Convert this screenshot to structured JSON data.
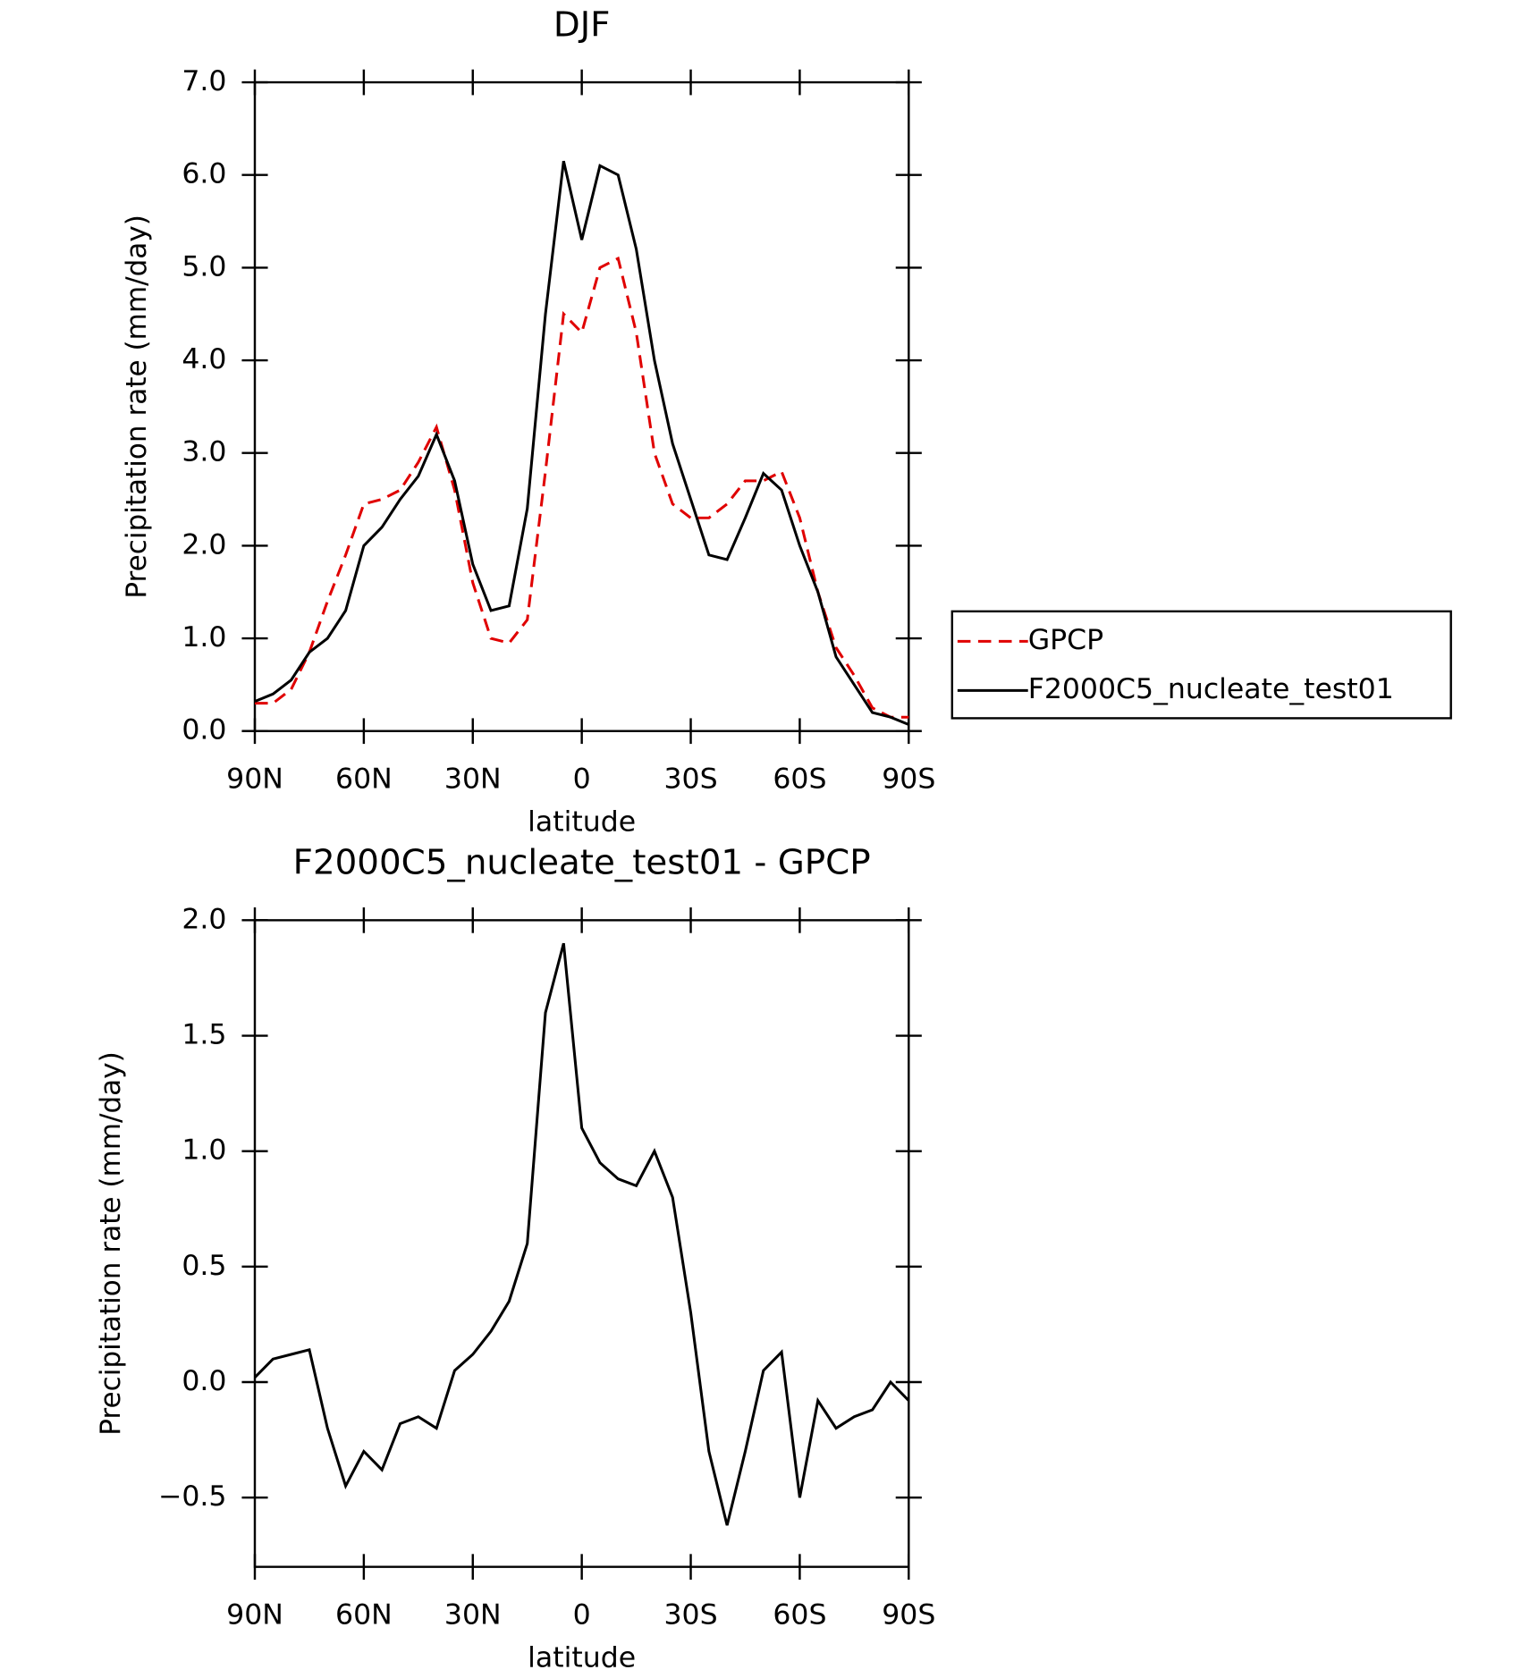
{
  "chart_data": [
    {
      "type": "line",
      "title": "DJF",
      "xlabel": "latitude",
      "ylabel": "Precipitation rate (mm/day)",
      "x": [
        90,
        85,
        80,
        75,
        70,
        65,
        60,
        55,
        50,
        45,
        40,
        35,
        30,
        25,
        20,
        15,
        10,
        5,
        0,
        -5,
        -10,
        -15,
        -20,
        -25,
        -30,
        -35,
        -40,
        -45,
        -50,
        -55,
        -60,
        -65,
        -70,
        -75,
        -80,
        -85,
        -90
      ],
      "series": [
        {
          "name": "GPCP",
          "color": "#e00000",
          "linestyle": "dashed",
          "values": [
            0.3,
            0.3,
            0.45,
            0.85,
            1.4,
            1.9,
            2.45,
            2.5,
            2.6,
            2.9,
            3.28,
            2.6,
            1.6,
            1.0,
            0.95,
            1.2,
            2.8,
            4.5,
            4.3,
            5.0,
            5.1,
            4.3,
            3.0,
            2.45,
            2.3,
            2.3,
            2.45,
            2.7,
            2.7,
            2.8,
            2.3,
            1.5,
            0.9,
            0.6,
            0.25,
            0.15,
            0.15
          ]
        },
        {
          "name": "F2000C5_nucleate_test01",
          "color": "#000000",
          "linestyle": "solid",
          "values": [
            0.32,
            0.4,
            0.55,
            0.85,
            1.0,
            1.3,
            2.0,
            2.2,
            2.5,
            2.75,
            3.2,
            2.7,
            1.8,
            1.3,
            1.35,
            2.4,
            4.5,
            6.15,
            5.3,
            6.1,
            6.0,
            5.2,
            4.0,
            3.1,
            2.5,
            1.9,
            1.85,
            2.3,
            2.78,
            2.6,
            2.0,
            1.5,
            0.8,
            0.5,
            0.2,
            0.15,
            0.07
          ]
        }
      ],
      "xlim": [
        90,
        -90
      ],
      "xticks": [
        {
          "value": 90,
          "label": "90N"
        },
        {
          "value": 60,
          "label": "60N"
        },
        {
          "value": 30,
          "label": "30N"
        },
        0,
        {
          "value": -30,
          "label": "30S"
        },
        {
          "value": -60,
          "label": "60S"
        },
        {
          "value": -90,
          "label": "90S"
        }
      ],
      "ylim": [
        0,
        7
      ],
      "yticks": [
        {
          "value": 0,
          "label": "0.0"
        },
        {
          "value": 1,
          "label": "1.0"
        },
        {
          "value": 2,
          "label": "2.0"
        },
        {
          "value": 3,
          "label": "3.0"
        },
        {
          "value": 4,
          "label": "4.0"
        },
        {
          "value": 5,
          "label": "5.0"
        },
        {
          "value": 6,
          "label": "6.0"
        },
        {
          "value": 7,
          "label": "7.0"
        }
      ],
      "legend": "right",
      "grid": false
    },
    {
      "type": "line",
      "title": "F2000C5_nucleate_test01 - GPCP",
      "xlabel": "latitude",
      "ylabel": "Precipitation rate (mm/day)",
      "x": [
        90,
        85,
        80,
        75,
        70,
        65,
        60,
        55,
        50,
        45,
        40,
        35,
        30,
        25,
        20,
        15,
        10,
        5,
        0,
        -5,
        -10,
        -15,
        -20,
        -25,
        -30,
        -35,
        -40,
        -45,
        -50,
        -55,
        -60,
        -65,
        -70,
        -75,
        -80,
        -85,
        -90
      ],
      "series": [
        {
          "color": "#000000",
          "linestyle": "solid",
          "values": [
            0.02,
            0.1,
            0.12,
            0.14,
            -0.2,
            -0.45,
            -0.3,
            -0.38,
            -0.18,
            -0.15,
            -0.2,
            0.05,
            0.12,
            0.22,
            0.35,
            0.6,
            1.6,
            1.9,
            1.1,
            0.95,
            0.88,
            0.85,
            1.0,
            0.8,
            0.3,
            -0.3,
            -0.62,
            -0.3,
            0.05,
            0.13,
            -0.5,
            -0.08,
            -0.2,
            -0.15,
            -0.12,
            0.0,
            -0.08
          ]
        }
      ],
      "xlim": [
        90,
        -90
      ],
      "xticks": [
        {
          "value": 90,
          "label": "90N"
        },
        {
          "value": 60,
          "label": "60N"
        },
        {
          "value": 30,
          "label": "30N"
        },
        0,
        {
          "value": -30,
          "label": "30S"
        },
        {
          "value": -60,
          "label": "60S"
        },
        {
          "value": -90,
          "label": "90S"
        }
      ],
      "ylim": [
        -0.8,
        2.0
      ],
      "yticks": [
        {
          "value": -0.5,
          "label": "−0.5"
        },
        {
          "value": 0,
          "label": "0.0"
        },
        {
          "value": 0.5,
          "label": "0.5"
        },
        {
          "value": 1,
          "label": "1.0"
        },
        {
          "value": 1.5,
          "label": "1.5"
        },
        {
          "value": 2,
          "label": "2.0"
        }
      ],
      "grid": false
    }
  ]
}
